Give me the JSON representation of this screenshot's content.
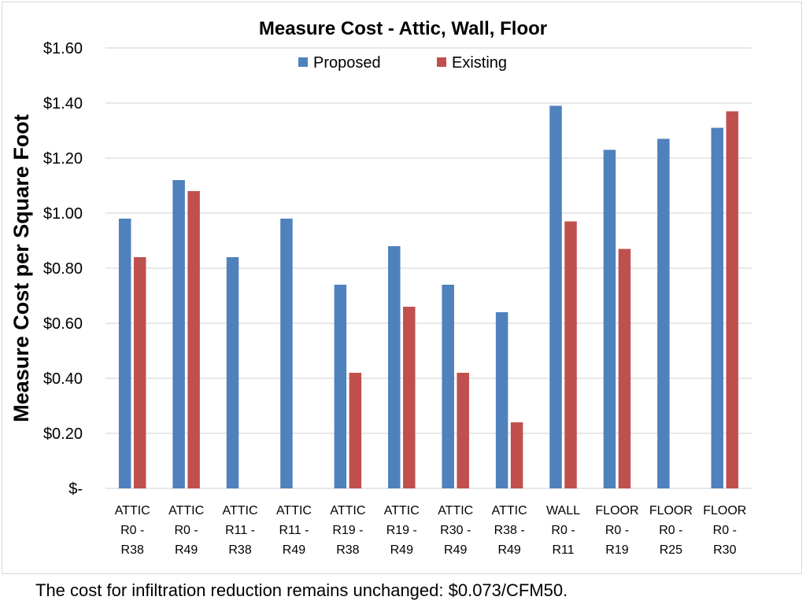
{
  "chart_data": {
    "type": "bar",
    "title": "Measure Cost - Attic, Wall, Floor",
    "xlabel": "",
    "ylabel": "Measure Cost per Square Foot",
    "ylim": [
      0,
      1.6
    ],
    "yticks": [
      0,
      0.2,
      0.4,
      0.6,
      0.8,
      1.0,
      1.2,
      1.4,
      1.6
    ],
    "ytick_labels": [
      "$-",
      "$0.20",
      "$0.40",
      "$0.60",
      "$0.80",
      "$1.00",
      "$1.20",
      "$1.40",
      "$1.60"
    ],
    "grid": true,
    "legend_position": "top-center",
    "categories": [
      [
        "ATTIC",
        "R0 -",
        "R38"
      ],
      [
        "ATTIC",
        "R0 -",
        "R49"
      ],
      [
        "ATTIC",
        "R11 -",
        "R38"
      ],
      [
        "ATTIC",
        "R11 -",
        "R49"
      ],
      [
        "ATTIC",
        "R19 -",
        "R38"
      ],
      [
        "ATTIC",
        "R19 -",
        "R49"
      ],
      [
        "ATTIC",
        "R30 -",
        "R49"
      ],
      [
        "ATTIC",
        "R38 -",
        "R49"
      ],
      [
        "WALL",
        "R0 -",
        "R11"
      ],
      [
        "FLOOR",
        "R0 -",
        "R19"
      ],
      [
        "FLOOR",
        "R0 -",
        "R25"
      ],
      [
        "FLOOR",
        "R0 -",
        "R30"
      ]
    ],
    "series": [
      {
        "name": "Proposed",
        "color": "#4f81bd",
        "values": [
          0.98,
          1.12,
          0.84,
          0.98,
          0.74,
          0.88,
          0.74,
          0.64,
          1.39,
          1.23,
          1.27,
          1.31
        ]
      },
      {
        "name": "Existing",
        "color": "#c0504d",
        "values": [
          0.84,
          1.08,
          null,
          null,
          0.42,
          0.66,
          0.42,
          0.24,
          0.97,
          0.87,
          null,
          1.37
        ]
      }
    ]
  },
  "footnote": "The cost for infiltration reduction remains unchanged: $0.073/CFM50."
}
